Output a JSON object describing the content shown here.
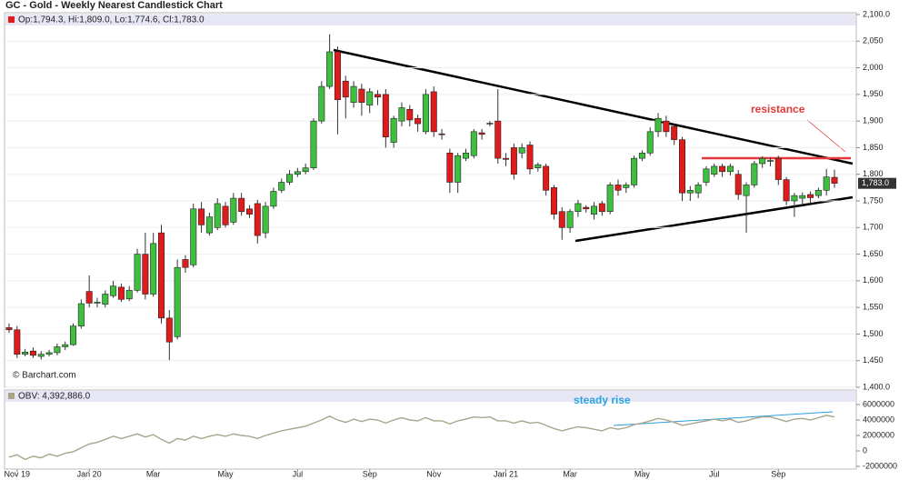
{
  "chart_data": [
    {
      "type": "candlestick",
      "title": "GC - Gold - Weekly Nearest Candlestick Chart",
      "legend_text": "Op:1,794.3, Hi:1,809.0, Lo:1,774.6, Cl:1,783.0",
      "last_price_label": "1,783.0",
      "source": "© Barchart.com",
      "annotation": "resistance",
      "up_color": "#3fbf3f",
      "down_color": "#e01b1b",
      "grid": true,
      "categories": [
        null,
        "Nov 19",
        null,
        null,
        null,
        null,
        null,
        null,
        null,
        null,
        "Jan 20",
        null,
        null,
        null,
        null,
        null,
        null,
        null,
        "Mar",
        null,
        null,
        null,
        null,
        null,
        null,
        null,
        null,
        "May",
        null,
        null,
        null,
        null,
        null,
        null,
        null,
        null,
        "Jul",
        null,
        null,
        null,
        null,
        null,
        null,
        null,
        null,
        "Sep",
        null,
        null,
        null,
        null,
        null,
        null,
        null,
        "Nov",
        null,
        null,
        null,
        null,
        null,
        null,
        null,
        null,
        "Jan 21",
        null,
        null,
        null,
        null,
        null,
        null,
        null,
        "Mar",
        null,
        null,
        null,
        null,
        null,
        null,
        null,
        null,
        "May",
        null,
        null,
        null,
        null,
        null,
        null,
        null,
        null,
        "Jul",
        null,
        null,
        null,
        null,
        null,
        null,
        null,
        "Sep",
        null,
        null,
        null,
        null,
        null,
        null,
        null
      ],
      "open": [
        1512,
        1508,
        1462,
        1468,
        1458,
        1462,
        1465,
        1476,
        1480,
        1515,
        1580,
        1558,
        1556,
        1572,
        1588,
        1566,
        1582,
        1650,
        1575,
        1690,
        1530,
        1495,
        1640,
        1630,
        1735,
        1690,
        1700,
        1740,
        1710,
        1755,
        1735,
        1745,
        1690,
        1740,
        1770,
        1785,
        1800,
        1805,
        1812,
        1900,
        1965,
        2030,
        1975,
        1935,
        1960,
        1930,
        1950,
        1950,
        1860,
        1900,
        1922,
        1905,
        1880,
        1955,
        1876,
        1840,
        1785,
        1830,
        1835,
        1878,
        1895,
        1900,
        1830,
        1850,
        1840,
        1855,
        1812,
        1815,
        1775,
        1730,
        1700,
        1730,
        1738,
        1725,
        1745,
        1730,
        1780,
        1775,
        1780,
        1830,
        1840,
        1880,
        1900,
        1890,
        1865,
        1765,
        1765,
        1785,
        1800,
        1815,
        1805,
        1800,
        1760,
        1780,
        1820,
        1825,
        1830,
        1790,
        1750,
        1755,
        1762,
        1760,
        1770,
        1794.3
      ],
      "high": [
        1520,
        1515,
        1472,
        1475,
        1468,
        1470,
        1482,
        1486,
        1520,
        1565,
        1610,
        1568,
        1582,
        1600,
        1595,
        1590,
        1660,
        1690,
        1690,
        1705,
        1545,
        1640,
        1648,
        1745,
        1748,
        1728,
        1755,
        1748,
        1765,
        1765,
        1742,
        1752,
        1748,
        1775,
        1792,
        1808,
        1812,
        1820,
        1905,
        1975,
        2063,
        2040,
        1985,
        1975,
        1970,
        1962,
        1958,
        1960,
        1910,
        1935,
        1930,
        1912,
        1960,
        1965,
        1885,
        1848,
        1840,
        1848,
        1885,
        1885,
        1900,
        1960,
        1840,
        1858,
        1858,
        1862,
        1822,
        1820,
        1780,
        1738,
        1735,
        1752,
        1742,
        1748,
        1750,
        1785,
        1790,
        1785,
        1835,
        1845,
        1888,
        1915,
        1910,
        1895,
        1870,
        1778,
        1785,
        1815,
        1820,
        1820,
        1820,
        1808,
        1785,
        1825,
        1834,
        1832,
        1835,
        1795,
        1765,
        1766,
        1768,
        1775,
        1810,
        1809.0
      ],
      "low": [
        1502,
        1455,
        1458,
        1455,
        1452,
        1458,
        1460,
        1470,
        1478,
        1510,
        1550,
        1550,
        1550,
        1568,
        1560,
        1562,
        1578,
        1565,
        1570,
        1520,
        1451,
        1490,
        1615,
        1625,
        1690,
        1685,
        1695,
        1700,
        1705,
        1722,
        1718,
        1670,
        1680,
        1735,
        1765,
        1780,
        1795,
        1800,
        1808,
        1895,
        1960,
        1875,
        1905,
        1925,
        1910,
        1915,
        1930,
        1850,
        1850,
        1890,
        1890,
        1880,
        1875,
        1870,
        1865,
        1765,
        1765,
        1825,
        1830,
        1865,
        1890,
        1820,
        1815,
        1790,
        1830,
        1800,
        1805,
        1760,
        1715,
        1677,
        1690,
        1720,
        1728,
        1715,
        1722,
        1725,
        1760,
        1765,
        1775,
        1825,
        1835,
        1870,
        1870,
        1855,
        1750,
        1750,
        1755,
        1778,
        1795,
        1795,
        1798,
        1752,
        1690,
        1775,
        1812,
        1815,
        1780,
        1742,
        1720,
        1745,
        1745,
        1755,
        1760,
        1774.6
      ],
      "close": [
        1508,
        1462,
        1466,
        1460,
        1462,
        1465,
        1476,
        1480,
        1515,
        1557,
        1558,
        1560,
        1575,
        1590,
        1565,
        1582,
        1650,
        1575,
        1670,
        1530,
        1485,
        1625,
        1625,
        1735,
        1705,
        1720,
        1745,
        1705,
        1755,
        1730,
        1725,
        1685,
        1740,
        1768,
        1785,
        1800,
        1805,
        1812,
        1900,
        1965,
        2030,
        1940,
        1945,
        1965,
        1935,
        1955,
        1945,
        1870,
        1905,
        1925,
        1902,
        1895,
        1950,
        1880,
        1875,
        1785,
        1835,
        1840,
        1880,
        1875,
        1896,
        1830,
        1828,
        1800,
        1850,
        1810,
        1818,
        1770,
        1725,
        1700,
        1730,
        1745,
        1735,
        1740,
        1730,
        1780,
        1770,
        1780,
        1830,
        1840,
        1880,
        1905,
        1880,
        1865,
        1765,
        1770,
        1780,
        1810,
        1815,
        1805,
        1815,
        1762,
        1780,
        1820,
        1830,
        1826,
        1790,
        1750,
        1760,
        1760,
        1756,
        1770,
        1795,
        1783.0
      ],
      "ylim": [
        1400,
        2100
      ],
      "yticks": [
        {
          "value": 1400,
          "label": "1,400.0"
        },
        {
          "value": 1450,
          "label": "1,450"
        },
        {
          "value": 1500,
          "label": "1,500"
        },
        {
          "value": 1550,
          "label": "1,550"
        },
        {
          "value": 1600,
          "label": "1,600"
        },
        {
          "value": 1650,
          "label": "1,650"
        },
        {
          "value": 1700,
          "label": "1,700"
        },
        {
          "value": 1750,
          "label": "1,750"
        },
        {
          "value": 1800,
          "label": "1,800"
        },
        {
          "value": 1850,
          "label": "1,850"
        },
        {
          "value": 1900,
          "label": "1,900"
        },
        {
          "value": 1950,
          "label": "1,950"
        },
        {
          "value": 2000,
          "label": "2,000"
        },
        {
          "value": 2050,
          "label": "2,050"
        },
        {
          "value": 2100,
          "label": "2,100.0"
        }
      ]
    },
    {
      "type": "line",
      "annotation": "steady rise",
      "series": [
        {
          "name": "OBV: 4,392,886.0",
          "color": "#a8a58a",
          "values": [
            -800000,
            -500000,
            -1100000,
            -700000,
            -900000,
            -400000,
            -700000,
            -300000,
            -100000,
            400000,
            900000,
            1100000,
            1500000,
            1900000,
            1600000,
            1900000,
            2200000,
            1800000,
            2100000,
            1500000,
            1000000,
            1600000,
            1400000,
            1900000,
            1600000,
            1900000,
            2100000,
            1900000,
            2200000,
            2000000,
            1900000,
            1600000,
            2000000,
            2300000,
            2600000,
            2800000,
            3000000,
            3200000,
            3600000,
            4000000,
            4500000,
            4000000,
            3700000,
            4100000,
            3800000,
            4100000,
            4000000,
            3600000,
            4000000,
            4300000,
            4000000,
            3900000,
            4300000,
            3900000,
            3900000,
            3500000,
            3900000,
            4100000,
            4400000,
            4300000,
            4400000,
            3900000,
            3900000,
            3600000,
            3900000,
            3600000,
            3700000,
            3300000,
            2900000,
            2600000,
            2900000,
            3100000,
            3000000,
            2800000,
            2600000,
            3000000,
            2800000,
            3000000,
            3400000,
            3600000,
            3900000,
            4200000,
            4000000,
            3700000,
            3300000,
            3500000,
            3700000,
            3900000,
            4100000,
            3900000,
            4100000,
            3700000,
            3900000,
            4200000,
            4400000,
            4400000,
            4100000,
            3800000,
            4100000,
            4200000,
            4000000,
            4300000,
            4600000,
            4392886
          ]
        }
      ],
      "ylim": [
        -2000000,
        6000000
      ],
      "yticks": [
        -2000000,
        0,
        2000000,
        4000000,
        6000000
      ]
    }
  ]
}
